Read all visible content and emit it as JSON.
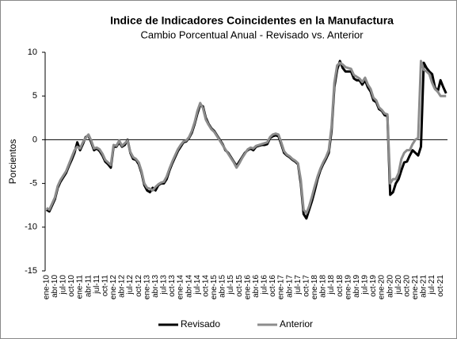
{
  "chart_data": {
    "type": "line",
    "title": "Indice de Indicadores Coincidentes en la Manufactura",
    "subtitle": "Cambio Porcentual Anual  - Revisado vs. Anterior",
    "y_label": "Porcientos",
    "categories": [
      "ene-10",
      null,
      null,
      "abr-10",
      null,
      null,
      "jul-10",
      null,
      null,
      "oct-10",
      null,
      null,
      "ene-11",
      null,
      null,
      "abr-11",
      null,
      null,
      "jul-11",
      null,
      null,
      "oct-11",
      null,
      null,
      "ene-12",
      null,
      null,
      "abr-12",
      null,
      null,
      "jul-12",
      null,
      null,
      "oct-12",
      null,
      null,
      "ene-13",
      null,
      null,
      "abr-13",
      null,
      null,
      "jul-13",
      null,
      null,
      "oct-13",
      null,
      null,
      "ene-14",
      null,
      null,
      "abr-14",
      null,
      null,
      "jul-14",
      null,
      null,
      "oct-14",
      null,
      null,
      "ene-15",
      null,
      null,
      "abr-15",
      null,
      null,
      "jul-15",
      null,
      null,
      "oct-15",
      null,
      null,
      "ene-16",
      null,
      null,
      "abr-16",
      null,
      null,
      "jul-16",
      null,
      null,
      "oct-16",
      null,
      null,
      "ene-17",
      null,
      null,
      "abr-17",
      null,
      null,
      "jul-17",
      null,
      null,
      "oct-17",
      null,
      null,
      "ene-18",
      null,
      null,
      "abr-18",
      null,
      null,
      "jul-18",
      null,
      null,
      "oct-18",
      null,
      null,
      "ene-19",
      null,
      null,
      "abr-19",
      null,
      null,
      "jul-19",
      null,
      null,
      "oct-19",
      null,
      null,
      "ene-20",
      null,
      null,
      "abr-20",
      null,
      null,
      "jul-20",
      null,
      null,
      "oct-20",
      null,
      null,
      "ene-21",
      null,
      null,
      "abr-21",
      null,
      null,
      "jul-21",
      null,
      null,
      "oct-21",
      null,
      null
    ],
    "series": [
      {
        "name": "Revisado",
        "color": "#000000",
        "width": 3,
        "values": [
          -8,
          -8.2,
          -7.5,
          -6.8,
          -5.5,
          -4.8,
          -4.3,
          -3.8,
          -3,
          -2.3,
          -1.5,
          -0.3,
          -1.2,
          -0.5,
          0.3,
          0.5,
          -0.3,
          -1.2,
          -1,
          -1.3,
          -1.8,
          -2.5,
          -2.8,
          -3.2,
          -0.8,
          -0.8,
          -0.3,
          -0.8,
          -0.6,
          0,
          -1.5,
          -2.2,
          -2.3,
          -2.8,
          -3.8,
          -5.2,
          -5.8,
          -6,
          -5.5,
          -5.8,
          -5.2,
          -5,
          -5,
          -4.5,
          -3.5,
          -2.7,
          -2,
          -1.3,
          -0.8,
          -0.3,
          -0.2,
          0.2,
          0.8,
          1.8,
          3,
          4,
          3.8,
          2.5,
          1.8,
          1.3,
          1,
          0.5,
          0,
          -0.5,
          -1.2,
          -1.5,
          -2,
          -2.5,
          -3,
          -2.5,
          -2,
          -1.5,
          -1.2,
          -1,
          -1.2,
          -0.8,
          -0.7,
          -0.6,
          -0.6,
          -0.5,
          0.2,
          0.4,
          0.5,
          0.4,
          -0.5,
          -1.5,
          -1.8,
          -2,
          -2.3,
          -2.5,
          -2.8,
          -5,
          -8.5,
          -9,
          -8,
          -7,
          -5.8,
          -4.5,
          -3.5,
          -2.8,
          -2.2,
          -1.5,
          1,
          6,
          8,
          9,
          8.2,
          7.8,
          7.8,
          7.8,
          7,
          6.8,
          6.8,
          6.3,
          6.8,
          6,
          5.5,
          4.5,
          4.3,
          3.5,
          3.3,
          2.8,
          2.7,
          -6.3,
          -6,
          -5,
          -4.5,
          -3.5,
          -2.6,
          -2.5,
          -1.8,
          -1.2,
          -1.5,
          -1.8,
          -0.8,
          8.8,
          8.2,
          7.8,
          7.5,
          6,
          5.5,
          6.8,
          6,
          5.3
        ]
      },
      {
        "name": "Anterior",
        "color": "#8c8c8c",
        "width": 3,
        "values": [
          -7.8,
          -8,
          -7.3,
          -6.6,
          -5.3,
          -4.6,
          -4.1,
          -3.6,
          -2.8,
          -2,
          -1.2,
          -0.8,
          -1,
          -0.3,
          0.2,
          0.6,
          -0.1,
          -1,
          -0.9,
          -1.1,
          -1.6,
          -2.3,
          -2.6,
          -2.9,
          -0.6,
          -0.7,
          -0.1,
          -0.7,
          -0.4,
          -0.1,
          -1.4,
          -2,
          -2.2,
          -2.6,
          -3.6,
          -5,
          -5.5,
          -5.6,
          -5.8,
          -5.4,
          -5.1,
          -4.9,
          -4.8,
          -4.2,
          -3.3,
          -2.5,
          -1.8,
          -1.1,
          -0.6,
          -0.2,
          -0.1,
          0.3,
          1,
          2,
          3.3,
          4.2,
          3.6,
          2.3,
          1.7,
          1.2,
          0.9,
          0.4,
          -0.1,
          -0.6,
          -1.1,
          -1.6,
          -2.1,
          -2.6,
          -3.2,
          -2.7,
          -2.1,
          -1.6,
          -1.1,
          -0.9,
          -1,
          -0.7,
          -0.6,
          -0.5,
          -0.4,
          -0.3,
          0.3,
          0.6,
          0.7,
          0.6,
          -0.3,
          -1.3,
          -1.7,
          -1.9,
          -2.2,
          -2.4,
          -2.7,
          -4.6,
          -8,
          -8.4,
          -7.6,
          -6.5,
          -5.3,
          -4.2,
          -3.3,
          -2.6,
          -2,
          -1.2,
          1.5,
          6.5,
          8.5,
          8.8,
          8.6,
          8.3,
          8.2,
          8.1,
          7.4,
          7.2,
          7,
          6.6,
          7.1,
          6.3,
          5.8,
          4.8,
          4.5,
          3.7,
          3.4,
          3,
          2.9,
          -5,
          -4.5,
          -4.5,
          -3.8,
          -2.2,
          -1.5,
          -1.2,
          -1.2,
          -0.5,
          0,
          0.2,
          9,
          8,
          7.8,
          7.5,
          6.5,
          5.8,
          5.5,
          5,
          5,
          5
        ]
      }
    ],
    "ylim": [
      -15,
      10
    ],
    "yticks": [
      -15,
      -10,
      -5,
      0,
      5,
      10
    ],
    "legend": "bottom"
  }
}
